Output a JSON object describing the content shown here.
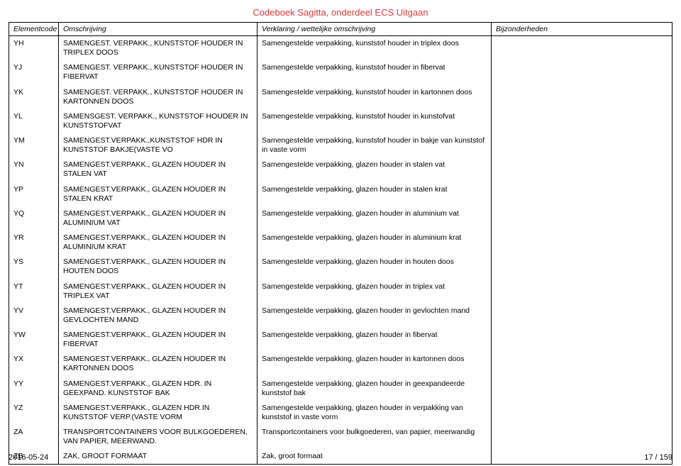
{
  "document": {
    "title": "Codeboek Sagitta, onderdeel ECS Uitgaan",
    "footer_date": "2016-05-24",
    "footer_page": "17 / 159"
  },
  "columns": {
    "col1": "Elementcode",
    "col2": "Omschrijving",
    "col3": "Verklaring / wettelijke omschrijving",
    "col4": "Bijzonderheden"
  },
  "rows": [
    {
      "code": "YH",
      "omschrijving": "SAMENGEST. VERPAKK., KUNSTSTOF HOUDER IN TRIPLEX DOOS",
      "verklaring": "Samengestelde verpakking, kunststof houder in triplex doos",
      "bijz": ""
    },
    {
      "code": "YJ",
      "omschrijving": "SAMENGEST. VERPAKK., KUNSTSTOF HOUDER IN FIBERVAT",
      "verklaring": "Samengestelde verpakking, kunststof houder in fibervat",
      "bijz": ""
    },
    {
      "code": "YK",
      "omschrijving": "SAMENGEST. VERPAKK., KUNSTSTOF HOUDER IN KARTONNEN DOOS",
      "verklaring": "Samengestelde verpakking, kunststof houder in kartonnen doos",
      "bijz": ""
    },
    {
      "code": "YL",
      "omschrijving": "SAMENSGEST. VERPAKK., KUNSTSTOF HOUDER IN KUNSTSTOFVAT",
      "verklaring": "Samengestelde verpakking, kunststof houder in kunstofvat",
      "bijz": ""
    },
    {
      "code": "YM",
      "omschrijving": "SAMENGEST.VERPAKK.,KUNSTSTOF HDR IN KUNSTSTOF BAKJE(VASTE VO",
      "verklaring": "Samengestelde verpakking, kunststof houder in bakje van kunststof in vaste vorm",
      "bijz": ""
    },
    {
      "code": "YN",
      "omschrijving": "SAMENGEST.VERPAKK., GLAZEN HOUDER IN STALEN VAT",
      "verklaring": "Samengestelde verpakking, glazen houder in stalen vat",
      "bijz": ""
    },
    {
      "code": "YP",
      "omschrijving": "SAMENGEST.VERPAKK., GLAZEN HOUDER IN STALEN KRAT",
      "verklaring": "Samengestelde verpakking, glazen houder in stalen krat",
      "bijz": ""
    },
    {
      "code": "YQ",
      "omschrijving": "SAMENGEST.VERPAKK., GLAZEN HOUDER IN ALUMINIUM VAT",
      "verklaring": "Samengestelde verpakking, glazen houder in aluminium vat",
      "bijz": ""
    },
    {
      "code": "YR",
      "omschrijving": "SAMENGEST.VERPAKK., GLAZEN HOUDER IN ALUMINIUM KRAT",
      "verklaring": "Samengestelde verpakking, glazen houder in aluminium krat",
      "bijz": ""
    },
    {
      "code": "YS",
      "omschrijving": "SAMENGEST.VERPAKK., GLAZEN HOUDER IN HOUTEN DOOS",
      "verklaring": "Samengestelde verpakking, glazen houder in houten doos",
      "bijz": ""
    },
    {
      "code": "YT",
      "omschrijving": "SAMENGEST.VERPAKK., GLAZEN HOUDER IN TRIPLEX VAT",
      "verklaring": "Samengestelde verpakking, glazen houder in triplex vat",
      "bijz": ""
    },
    {
      "code": "YV",
      "omschrijving": "SAMENGEST.VERPAKK., GLAZEN HOUDER IN GEVLOCHTEN MAND",
      "verklaring": "Samengestelde verpakking, glazen houder in gevlochten mand",
      "bijz": ""
    },
    {
      "code": "YW",
      "omschrijving": "SAMENGEST.VERPAKK., GLAZEN HOUDER IN FIBERVAT",
      "verklaring": "Samengestelde verpakking, glazen houder in fibervat",
      "bijz": ""
    },
    {
      "code": "YX",
      "omschrijving": "SAMENGEST.VERPAKK., GLAZEN HOUDER IN KARTONNEN DOOS",
      "verklaring": "Samengestelde verpakking, glazen houder in kartonnen doos",
      "bijz": ""
    },
    {
      "code": "YY",
      "omschrijving": "SAMENGEST.VERPAKK., GLAZEN HDR. IN GEEXPAND. KUNSTSTOF BAK",
      "verklaring": "Samengestelde verpakking, glazen houder in geexpandeerde kunststof bak",
      "bijz": ""
    },
    {
      "code": "YZ",
      "omschrijving": "SAMENGEST.VERPAKK., GLAZEN HDR.IN KUNSTSTOF VERP.(VASTE VORM",
      "verklaring": "Samengestelde verpakking, glazen houder in verpakking van kunststof in vaste vorm",
      "bijz": ""
    },
    {
      "code": "ZA",
      "omschrijving": "TRANSPORTCONTAINERS VOOR BULKGOEDEREN, VAN PAPIER, MEERWAND.",
      "verklaring": "Transportcontainers voor bulkgoederen, van papier, meerwandig",
      "bijz": ""
    },
    {
      "code": "ZB",
      "omschrijving": "ZAK, GROOT FORMAAT",
      "verklaring": "Zak, groot formaat",
      "bijz": ""
    }
  ]
}
